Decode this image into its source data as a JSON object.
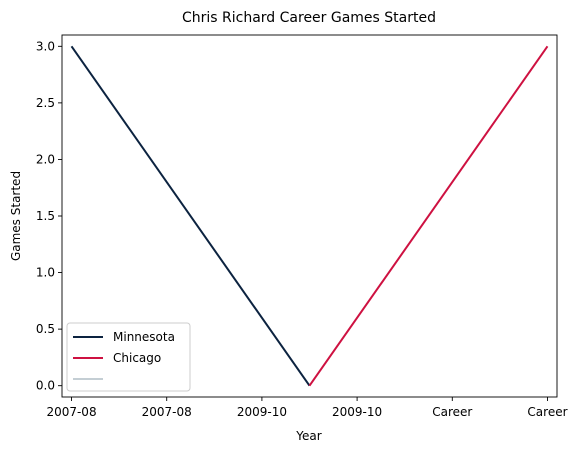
{
  "chart_data": {
    "type": "line",
    "title": "Chris Richard  Career Games Started",
    "xlabel": "Year",
    "ylabel": "Games Started",
    "x_ticks": [
      "2007-08",
      "2007-08",
      "2009-10",
      "2009-10",
      "Career",
      "Career"
    ],
    "y_ticks": [
      "0.0",
      "0.5",
      "1.0",
      "1.5",
      "2.0",
      "2.5",
      "3.0"
    ],
    "ylim": [
      -0.1,
      3.1
    ],
    "grid": false,
    "legend_position": "lower-left",
    "series": [
      {
        "name": "Minnesota",
        "color": "#0c2340",
        "points": [
          [
            0,
            3
          ],
          [
            2.5,
            0
          ]
        ]
      },
      {
        "name": "Chicago",
        "color": "#ce1141",
        "points": [
          [
            2.5,
            0
          ],
          [
            5,
            3
          ]
        ]
      },
      {
        "name": "",
        "color": "#c4ced4",
        "points": []
      }
    ]
  }
}
